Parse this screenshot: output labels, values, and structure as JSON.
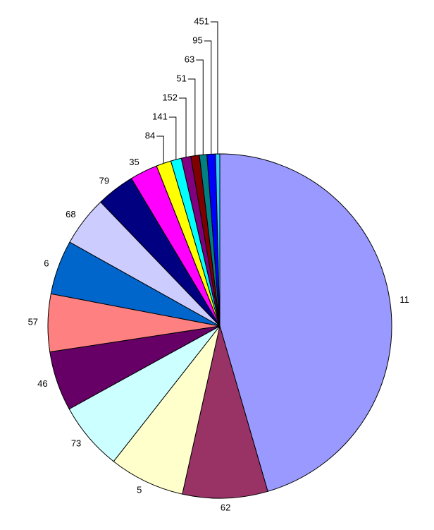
{
  "chart_data": {
    "type": "pie",
    "categories": [
      "11",
      "62",
      "5",
      "73",
      "46",
      "57",
      "6",
      "68",
      "79",
      "35",
      "84",
      "141",
      "152",
      "51",
      "63",
      "95",
      "451"
    ],
    "values": [
      45.5,
      8,
      7.1,
      6.4,
      5.6,
      5.4,
      5.1,
      4.7,
      3.6,
      2.6,
      1.4,
      1.0,
      0.9,
      0.8,
      0.7,
      0.8,
      0.4
    ],
    "colors": [
      "#9999ff",
      "#993366",
      "#ffffcc",
      "#ccffff",
      "#660066",
      "#ff8080",
      "#0066cc",
      "#ccccff",
      "#000080",
      "#ff00ff",
      "#ffff00",
      "#00ffff",
      "#800080",
      "#800000",
      "#008080",
      "#0000ff",
      "#33ccff"
    ]
  }
}
